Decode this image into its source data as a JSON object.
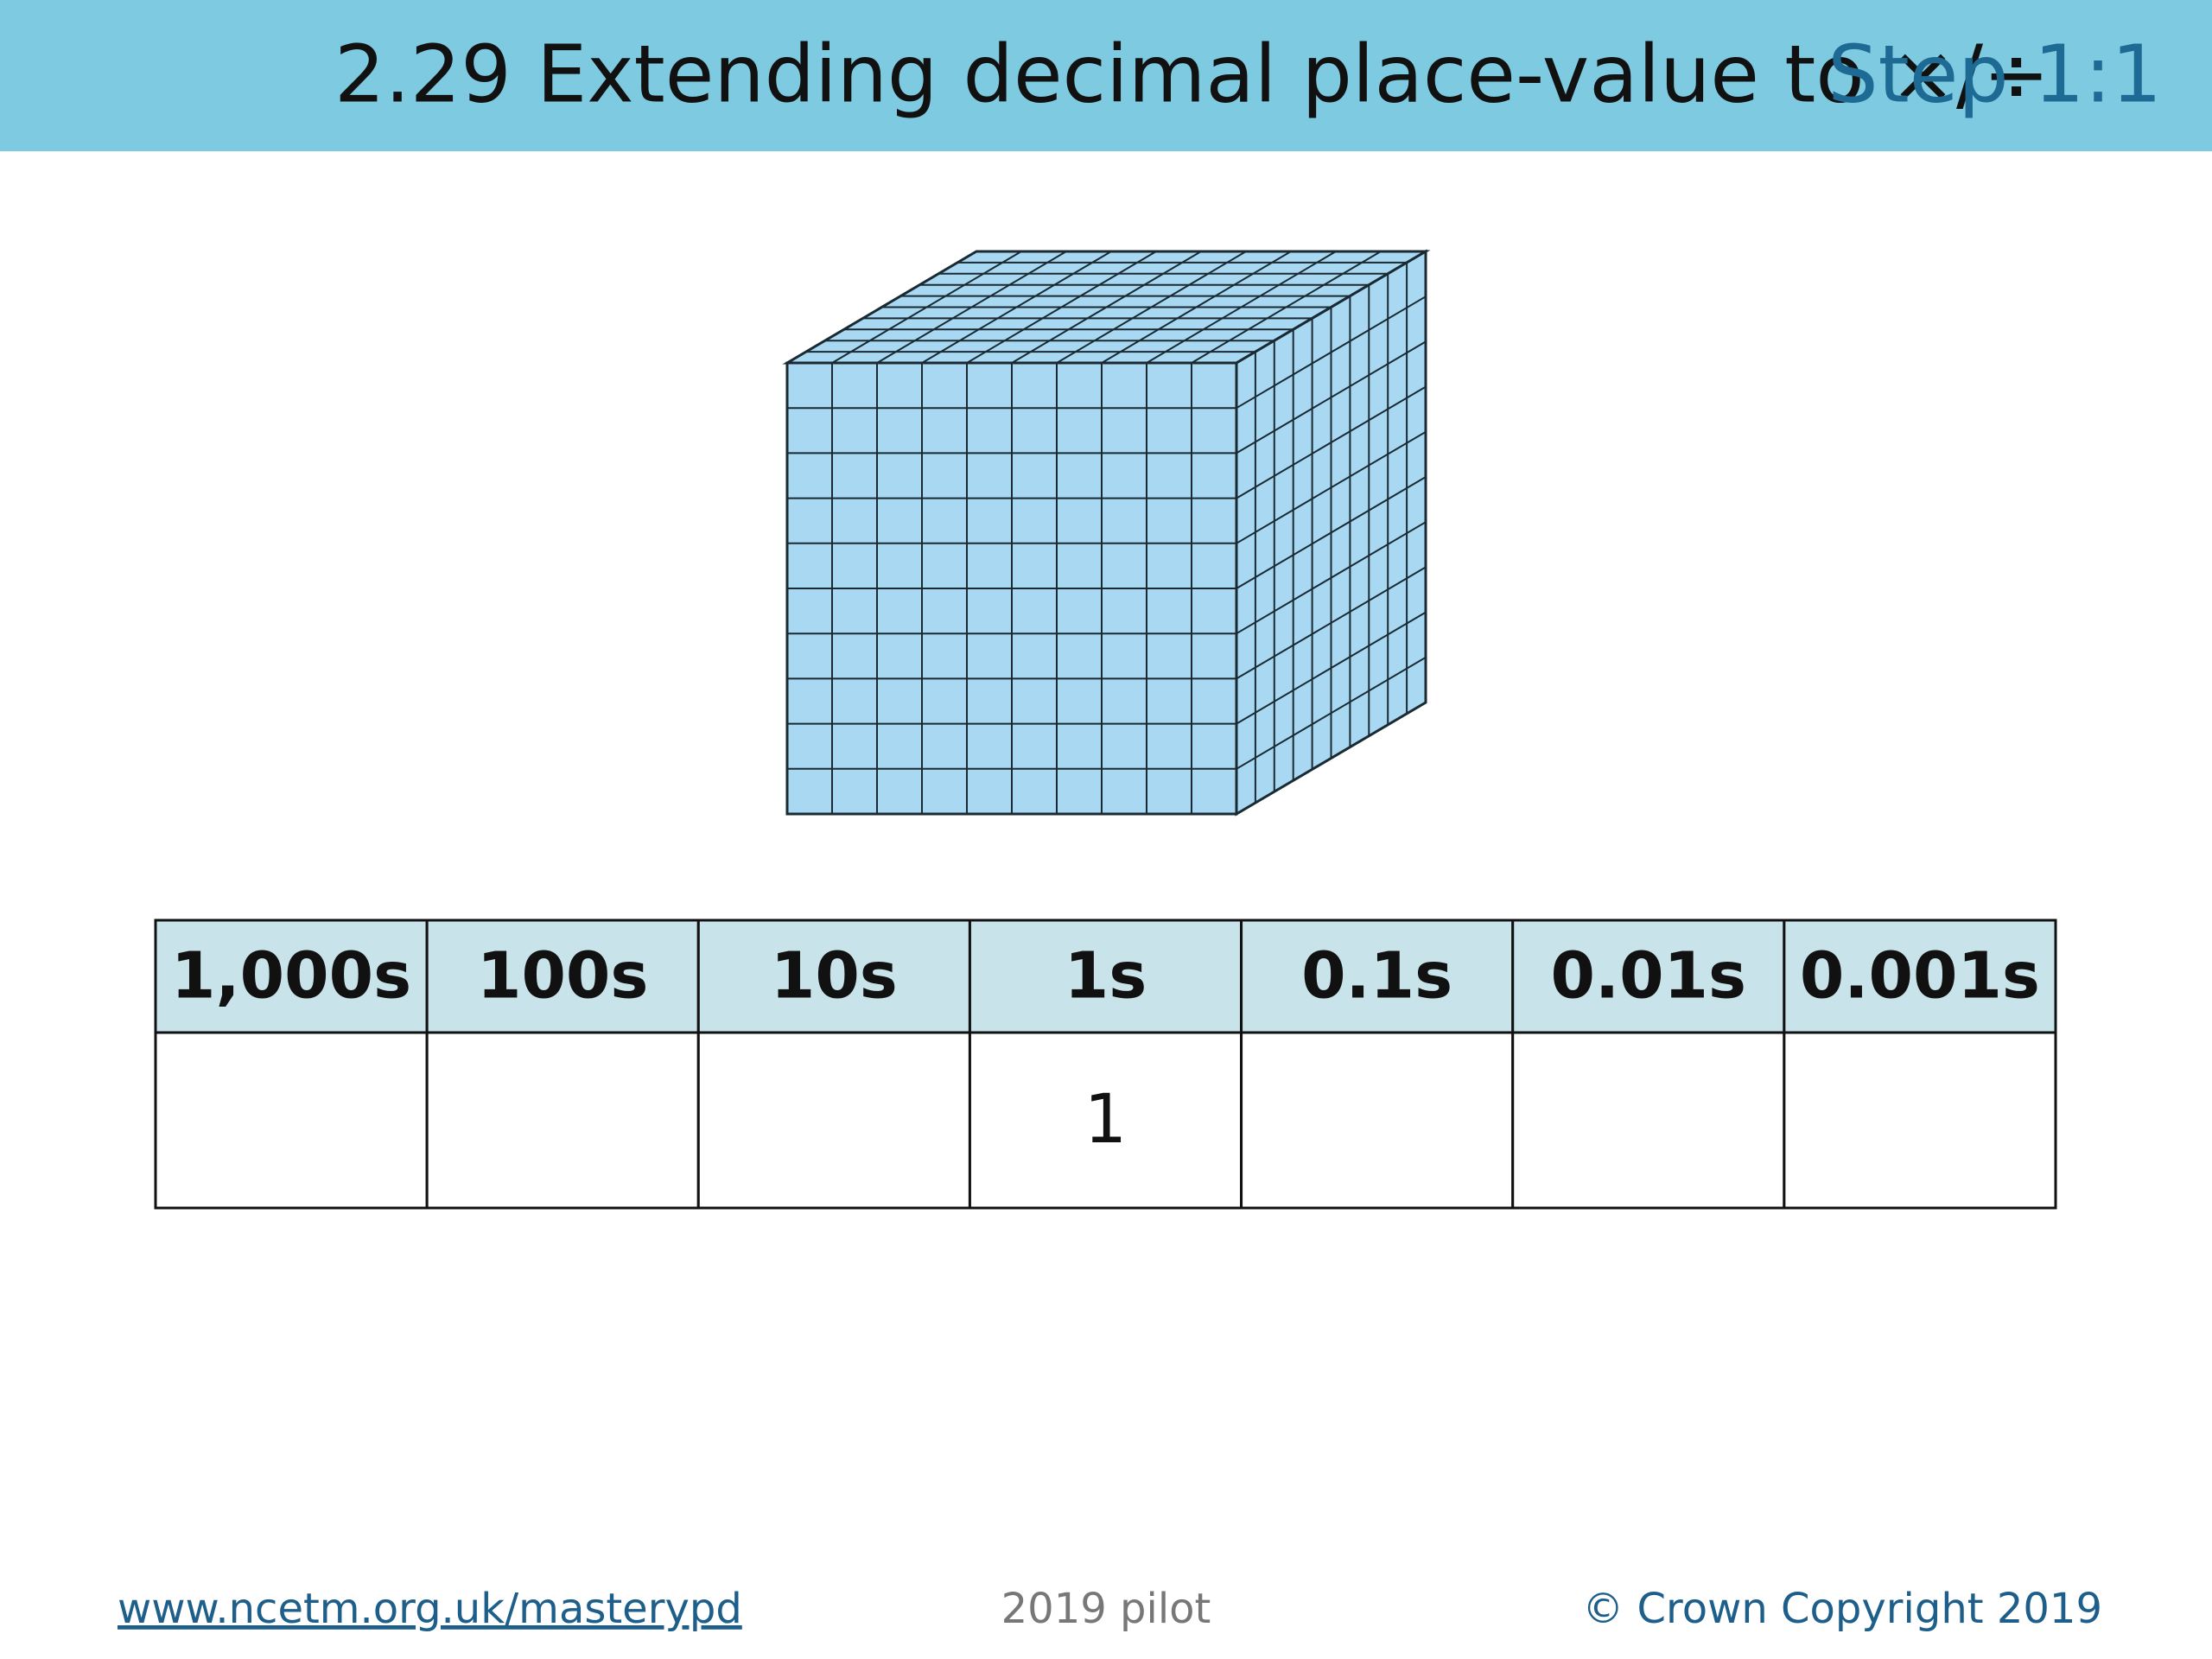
{
  "header": {
    "title": "2.29 Extending decimal place-value to ×/÷",
    "step": "Step 1:1"
  },
  "table": {
    "headers": [
      "1,000s",
      "100s",
      "10s",
      "1s",
      "0.1s",
      "0.01s",
      "0.001s"
    ],
    "rows": [
      [
        null,
        null,
        null,
        "1",
        null,
        null,
        null
      ]
    ]
  },
  "footer": {
    "link": "www.ncetm.org.uk/masterypd",
    "center": "2019 pilot",
    "copyright": "© Crown Copyright 2019"
  }
}
